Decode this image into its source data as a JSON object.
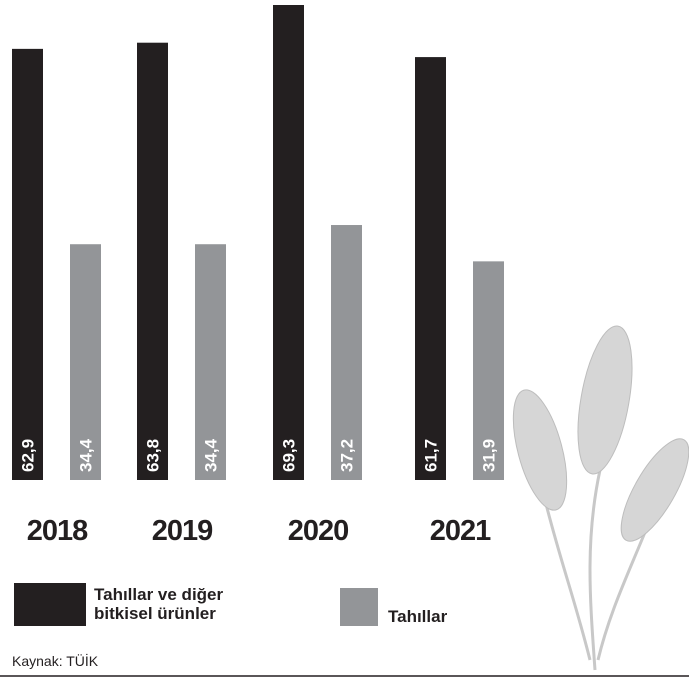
{
  "chart_data": {
    "type": "bar",
    "categories": [
      "2018",
      "2019",
      "2020",
      "2021"
    ],
    "series": [
      {
        "name": "Tahıllar ve diğer bitkisel ürünler",
        "color": "#231f20",
        "values": [
          62.9,
          63.8,
          69.3,
          61.7
        ],
        "value_labels": [
          "62,9",
          "63,8",
          "69,3",
          "61,7"
        ]
      },
      {
        "name": "Tahıllar",
        "color": "#939598",
        "values": [
          34.4,
          34.4,
          37.2,
          31.9
        ],
        "value_labels": [
          "34,4",
          "34,4",
          "37,2",
          "31,9"
        ]
      }
    ],
    "source": "Kaynak: TÜİK"
  }
}
